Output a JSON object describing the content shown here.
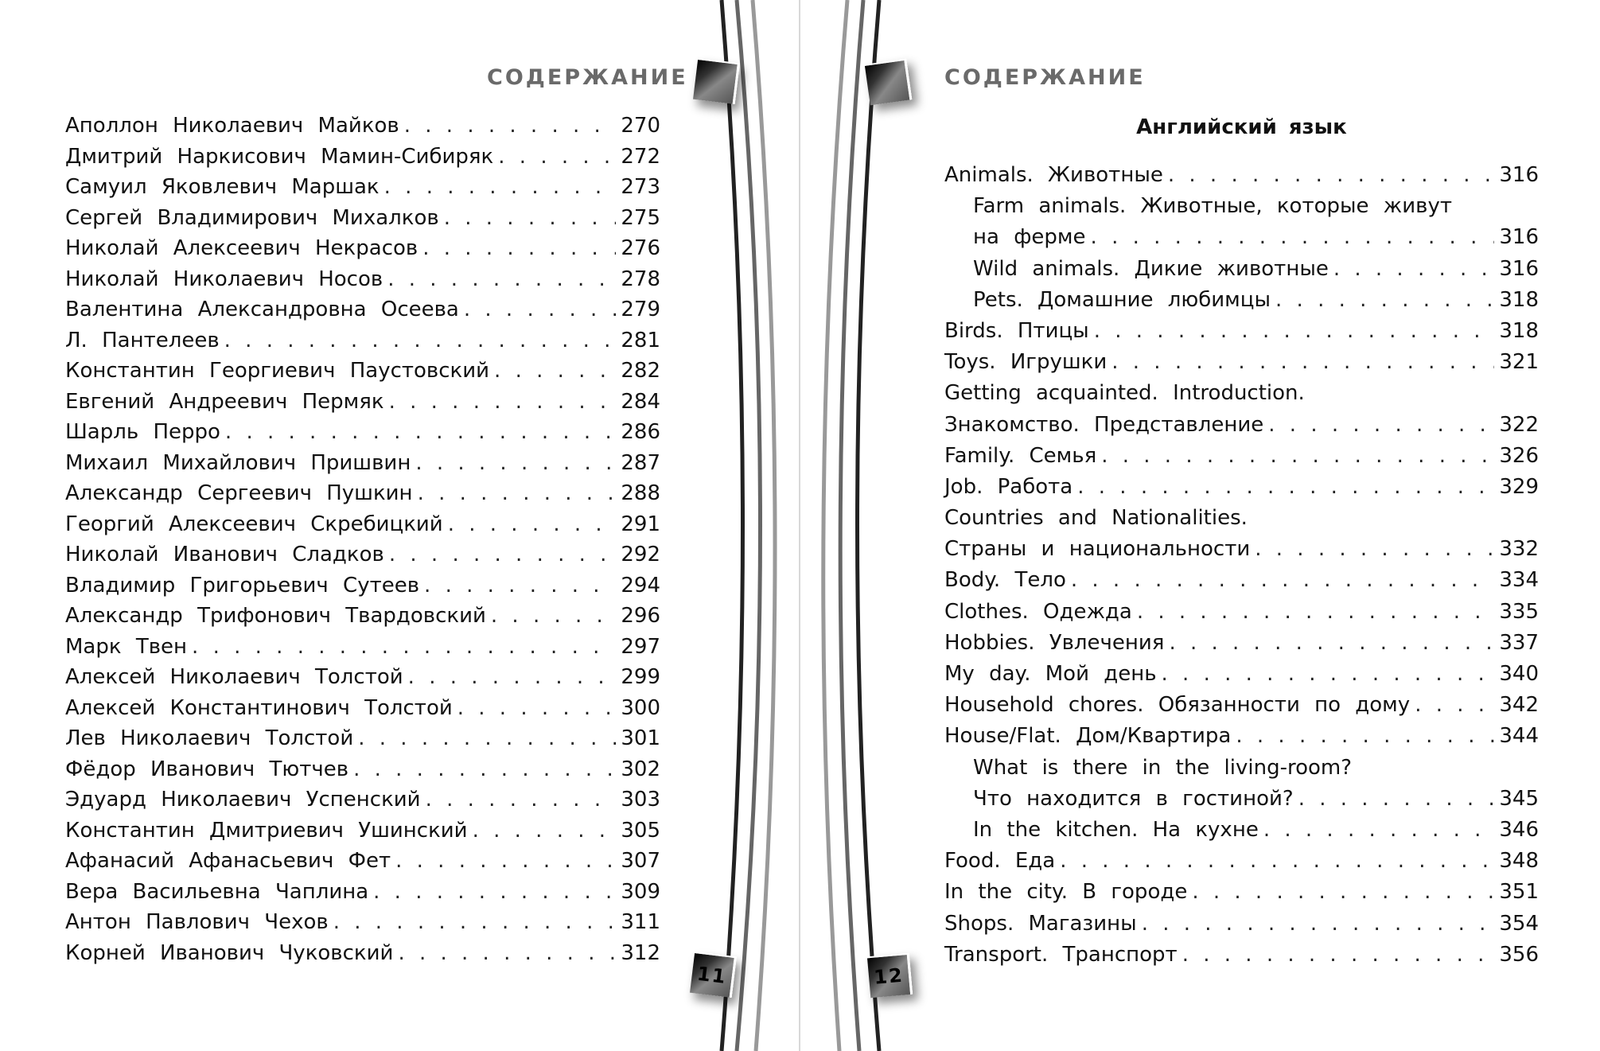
{
  "left_page": {
    "heading": "СОДЕРЖАНИЕ",
    "page_number": "11",
    "entries": [
      {
        "label": "Аполлон Николаевич Майков",
        "page": "270"
      },
      {
        "label": "Дмитрий Наркисович Мамин-Сибиряк",
        "page": "272"
      },
      {
        "label": "Самуил Яковлевич Маршак",
        "page": "273"
      },
      {
        "label": "Сергей Владимирович Михалков",
        "page": "275"
      },
      {
        "label": "Николай Алексеевич Некрасов",
        "page": "276"
      },
      {
        "label": "Николай Николаевич Носов",
        "page": "278"
      },
      {
        "label": "Валентина Александровна Осеева",
        "page": "279"
      },
      {
        "label": "Л. Пантелеев",
        "page": "281"
      },
      {
        "label": "Константин Георгиевич Паустовский",
        "page": "282"
      },
      {
        "label": "Евгений Андреевич Пермяк",
        "page": "284"
      },
      {
        "label": "Шарль Перро",
        "page": "286"
      },
      {
        "label": "Михаил Михайлович Пришвин",
        "page": "287"
      },
      {
        "label": "Александр Сергеевич Пушкин",
        "page": "288"
      },
      {
        "label": "Георгий Алексеевич Скребицкий",
        "page": "291"
      },
      {
        "label": "Николай Иванович Сладков",
        "page": "292"
      },
      {
        "label": "Владимир Григорьевич Сутеев",
        "page": "294"
      },
      {
        "label": "Александр Трифонович Твардовский",
        "page": "296"
      },
      {
        "label": "Марк Твен",
        "page": "297"
      },
      {
        "label": "Алексей Николаевич Толстой",
        "page": "299"
      },
      {
        "label": "Алексей Константинович Толстой",
        "page": "300"
      },
      {
        "label": "Лев Николаевич Толстой",
        "page": "301"
      },
      {
        "label": "Фёдор Иванович Тютчев",
        "page": "302"
      },
      {
        "label": "Эдуард Николаевич Успенский",
        "page": "303"
      },
      {
        "label": "Константин Дмитриевич Ушинский",
        "page": "305"
      },
      {
        "label": "Афанасий Афанасьевич Фет",
        "page": "307"
      },
      {
        "label": "Вера Васильевна Чаплина",
        "page": "309"
      },
      {
        "label": "Антон Павлович Чехов",
        "page": "311"
      },
      {
        "label": "Корней Иванович Чуковский",
        "page": "312"
      }
    ]
  },
  "right_page": {
    "heading": "СОДЕРЖАНИЕ",
    "section_title": "Английский язык",
    "page_number": "12",
    "entries": [
      {
        "label": "Animals. Животные",
        "page": "316",
        "indent": false
      },
      {
        "label": "Farm animals. Животные, которые живут",
        "page": null,
        "indent": true
      },
      {
        "label": "на ферме",
        "page": "316",
        "indent": true
      },
      {
        "label": "Wild animals. Дикие животные",
        "page": "316",
        "indent": true
      },
      {
        "label": "Pets. Домашние любимцы",
        "page": "318",
        "indent": true
      },
      {
        "label": "Birds. Птицы",
        "page": "318",
        "indent": false
      },
      {
        "label": "Toys. Игрушки",
        "page": "321",
        "indent": false
      },
      {
        "label": "Getting acquainted. Introduction.",
        "page": null,
        "indent": false
      },
      {
        "label": "Знакомство. Представление",
        "page": "322",
        "indent": false
      },
      {
        "label": "Family. Семья",
        "page": "326",
        "indent": false
      },
      {
        "label": "Job. Работа",
        "page": "329",
        "indent": false
      },
      {
        "label": "Countries and Nationalities.",
        "page": null,
        "indent": false
      },
      {
        "label": "Страны и национальности",
        "page": "332",
        "indent": false
      },
      {
        "label": "Body. Тело",
        "page": "334",
        "indent": false
      },
      {
        "label": "Clothes. Одежда",
        "page": "335",
        "indent": false
      },
      {
        "label": "Hobbies. Увлечения",
        "page": "337",
        "indent": false
      },
      {
        "label": "My day. Мой день",
        "page": "340",
        "indent": false
      },
      {
        "label": "Household chores. Обязанности по дому",
        "page": "342",
        "indent": false
      },
      {
        "label": "House/Flat. Дом/Квартира",
        "page": "344",
        "indent": false
      },
      {
        "label": "What is there in the living-room?",
        "page": null,
        "indent": true
      },
      {
        "label": "Что находится в гостиной?",
        "page": "345",
        "indent": true
      },
      {
        "label": "In the kitchen. На кухне",
        "page": "346",
        "indent": true
      },
      {
        "label": "Food. Еда",
        "page": "348",
        "indent": false
      },
      {
        "label": "In the city. В городе",
        "page": "351",
        "indent": false
      },
      {
        "label": "Shops. Магазины",
        "page": "354",
        "indent": false
      },
      {
        "label": "Transport. Транспорт",
        "page": "356",
        "indent": false
      }
    ]
  }
}
